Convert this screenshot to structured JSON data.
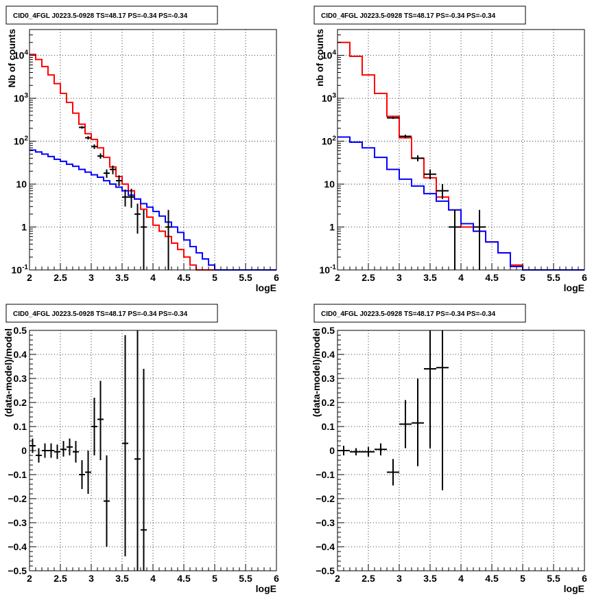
{
  "chart_data": [
    {
      "type": "step-histogram-with-errorbars",
      "title": "CID0_4FGL J0223.5-0928 TS=48.17 PS=-0.34 PS=-0.34",
      "xlabel": "logE",
      "ylabel": "Nb of counts",
      "xlim": [
        2,
        6
      ],
      "ylim": [
        0.1,
        40000
      ],
      "ylog": true,
      "grid": true,
      "xticks": [
        "2",
        "2.5",
        "3",
        "3.5",
        "4",
        "4.5",
        "5",
        "5.5",
        "6"
      ],
      "yticks": [
        {
          "v": 0.1,
          "label": "10",
          "exp": "-1"
        },
        {
          "v": 1,
          "label": "1",
          "exp": ""
        },
        {
          "v": 10,
          "label": "10",
          "exp": ""
        },
        {
          "v": 100,
          "label": "10",
          "exp": "2"
        },
        {
          "v": 1000,
          "label": "10",
          "exp": "3"
        },
        {
          "v": 10000,
          "label": "10",
          "exp": "4"
        }
      ],
      "bin_edges": [
        2.0,
        2.1,
        2.2,
        2.3,
        2.4,
        2.5,
        2.6,
        2.7,
        2.8,
        2.9,
        3.0,
        3.1,
        3.2,
        3.3,
        3.4,
        3.5,
        3.6,
        3.7,
        3.8,
        3.9,
        4.0,
        4.1,
        4.2,
        4.3,
        4.4,
        4.5,
        4.6,
        4.7,
        4.8,
        4.9,
        5.0,
        5.1,
        5.2,
        5.3,
        5.4,
        5.5,
        5.6,
        5.7,
        5.8,
        5.9,
        6.0
      ],
      "series": [
        {
          "color": "#ff0000",
          "values": [
            10500,
            8000,
            5500,
            3500,
            2200,
            1300,
            800,
            450,
            250,
            150,
            110,
            70,
            42,
            25,
            15,
            10,
            7,
            4.5,
            2.6,
            1.7,
            1.1,
            0.8,
            0.6,
            0.42,
            0.3,
            0.2,
            0.13,
            0.1,
            0.1,
            0.1,
            0.1,
            0.1,
            0.1,
            0.1,
            0.1,
            0.1,
            0.1,
            0.1,
            0.1,
            0.1
          ]
        },
        {
          "color": "#0000ff",
          "values": [
            62,
            56,
            50,
            44,
            38,
            34,
            29,
            26,
            22,
            19,
            16.5,
            14.5,
            12,
            10,
            8.5,
            7,
            5.5,
            4.5,
            3.5,
            2.9,
            2.3,
            1.8,
            1.3,
            1.0,
            0.75,
            0.5,
            0.35,
            0.25,
            0.18,
            0.13,
            0.1,
            0.1,
            0.1,
            0.1,
            0.1,
            0.1,
            0.1,
            0.1,
            0.1,
            0.1
          ]
        }
      ],
      "points": [
        {
          "x": 2.85,
          "y": 210,
          "hw": 0.05,
          "lo": 195,
          "hi": 225
        },
        {
          "x": 2.95,
          "y": 120,
          "hw": 0.05,
          "lo": 109,
          "hi": 131
        },
        {
          "x": 3.05,
          "y": 75,
          "hw": 0.05,
          "lo": 66,
          "hi": 84
        },
        {
          "x": 3.15,
          "y": 45,
          "hw": 0.05,
          "lo": 39,
          "hi": 52
        },
        {
          "x": 3.25,
          "y": 18,
          "hw": 0.05,
          "lo": 14,
          "hi": 22
        },
        {
          "x": 3.35,
          "y": 22,
          "hw": 0.05,
          "lo": 17,
          "hi": 27
        },
        {
          "x": 3.45,
          "y": 12,
          "hw": 0.05,
          "lo": 9,
          "hi": 16
        },
        {
          "x": 3.55,
          "y": 5,
          "hw": 0.05,
          "lo": 3,
          "hi": 7.5
        },
        {
          "x": 3.65,
          "y": 5,
          "hw": 0.05,
          "lo": 2.8,
          "hi": 7.8
        },
        {
          "x": 3.75,
          "y": 2,
          "hw": 0.05,
          "lo": 0.7,
          "hi": 3.5
        },
        {
          "x": 3.85,
          "y": 1,
          "hw": 0.05,
          "lo": 0.1,
          "hi": 2.5
        },
        {
          "x": 4.25,
          "y": 1,
          "hw": 0.05,
          "lo": 0.1,
          "hi": 2.5
        }
      ]
    },
    {
      "type": "step-histogram-with-errorbars",
      "title": "CID0_4FGL J0223.5-0928 TS=48.17 PS=-0.34 PS=-0.34",
      "xlabel": "logE",
      "ylabel": "nb of counts",
      "xlim": [
        2,
        6
      ],
      "ylim": [
        0.1,
        40000
      ],
      "ylog": true,
      "grid": true,
      "xticks": [
        "2",
        "2.5",
        "3",
        "3.5",
        "4",
        "4.5",
        "5",
        "5.5",
        "6"
      ],
      "yticks": [
        {
          "v": 0.1,
          "label": "10",
          "exp": "-1"
        },
        {
          "v": 1,
          "label": "1",
          "exp": ""
        },
        {
          "v": 10,
          "label": "10",
          "exp": ""
        },
        {
          "v": 100,
          "label": "10",
          "exp": "2"
        },
        {
          "v": 1000,
          "label": "10",
          "exp": "3"
        },
        {
          "v": 10000,
          "label": "10",
          "exp": "4"
        }
      ],
      "bin_edges": [
        2.0,
        2.2,
        2.4,
        2.6,
        2.8,
        3.0,
        3.2,
        3.4,
        3.6,
        3.8,
        4.0,
        4.2,
        4.4,
        4.6,
        4.8,
        5.0,
        5.2,
        5.4,
        5.6,
        5.8,
        6.0
      ],
      "series": [
        {
          "color": "#ff0000",
          "values": [
            20000,
            9500,
            3500,
            1300,
            380,
            120,
            40,
            14,
            5,
            2.5,
            1.0,
            0.8,
            0.45,
            0.25,
            0.13,
            0.1,
            0.1,
            0.1,
            0.1,
            0.1
          ]
        },
        {
          "color": "#0000ff",
          "values": [
            125,
            95,
            70,
            42,
            22,
            13,
            9,
            6,
            4,
            2.5,
            1.2,
            0.8,
            0.45,
            0.25,
            0.12,
            0.1,
            0.1,
            0.1,
            0.1,
            0.1
          ]
        }
      ],
      "points": [
        {
          "x": 2.9,
          "y": 350,
          "hw": 0.1,
          "lo": 330,
          "hi": 370
        },
        {
          "x": 3.1,
          "y": 130,
          "hw": 0.1,
          "lo": 118,
          "hi": 142
        },
        {
          "x": 3.3,
          "y": 40,
          "hw": 0.1,
          "lo": 34,
          "hi": 47
        },
        {
          "x": 3.5,
          "y": 17,
          "hw": 0.1,
          "lo": 13,
          "hi": 22
        },
        {
          "x": 3.7,
          "y": 7,
          "hw": 0.1,
          "lo": 4.5,
          "hi": 10
        },
        {
          "x": 3.9,
          "y": 1,
          "hw": 0.1,
          "lo": 0.1,
          "hi": 2.5
        },
        {
          "x": 4.3,
          "y": 1,
          "hw": 0.1,
          "lo": 0.1,
          "hi": 2.5
        }
      ]
    },
    {
      "type": "errorbar",
      "title": "CID0_4FGL J0223.5-0928 TS=48.17 PS=-0.34 PS=-0.34",
      "xlabel": "logE",
      "ylabel": "(data-model)/model",
      "xlim": [
        2,
        6
      ],
      "ylim": [
        -0.5,
        0.5
      ],
      "ylog": false,
      "grid": true,
      "xticks": [
        "2",
        "2.5",
        "3",
        "3.5",
        "4",
        "4.5",
        "5",
        "5.5",
        "6"
      ],
      "yticks": [
        {
          "v": -0.5,
          "label": "−0.5"
        },
        {
          "v": -0.4,
          "label": "−0.4"
        },
        {
          "v": -0.3,
          "label": "−0.3"
        },
        {
          "v": -0.2,
          "label": "−0.2"
        },
        {
          "v": -0.1,
          "label": "−0.1"
        },
        {
          "v": 0,
          "label": "0"
        },
        {
          "v": 0.1,
          "label": "0.1"
        },
        {
          "v": 0.2,
          "label": "0.2"
        },
        {
          "v": 0.3,
          "label": "0.3"
        },
        {
          "v": 0.4,
          "label": "0.4"
        },
        {
          "v": 0.5,
          "label": "0.5"
        }
      ],
      "points": [
        {
          "x": 2.05,
          "y": 0.02,
          "hw": 0.05,
          "lo": -0.01,
          "hi": 0.05
        },
        {
          "x": 2.15,
          "y": -0.02,
          "hw": 0.05,
          "lo": -0.05,
          "hi": 0.01
        },
        {
          "x": 2.25,
          "y": 0.0,
          "hw": 0.05,
          "lo": -0.03,
          "hi": 0.03
        },
        {
          "x": 2.35,
          "y": 0.0,
          "hw": 0.05,
          "lo": -0.03,
          "hi": 0.03
        },
        {
          "x": 2.45,
          "y": -0.005,
          "hw": 0.05,
          "lo": -0.035,
          "hi": 0.025
        },
        {
          "x": 2.55,
          "y": 0.005,
          "hw": 0.05,
          "lo": -0.025,
          "hi": 0.04
        },
        {
          "x": 2.65,
          "y": 0.015,
          "hw": 0.05,
          "lo": -0.02,
          "hi": 0.05
        },
        {
          "x": 2.75,
          "y": -0.005,
          "hw": 0.05,
          "lo": -0.05,
          "hi": 0.04
        },
        {
          "x": 2.85,
          "y": -0.1,
          "hw": 0.05,
          "lo": -0.16,
          "hi": -0.04
        },
        {
          "x": 2.95,
          "y": -0.09,
          "hw": 0.05,
          "lo": -0.18,
          "hi": 0.0
        },
        {
          "x": 3.05,
          "y": 0.1,
          "hw": 0.05,
          "lo": -0.02,
          "hi": 0.22
        },
        {
          "x": 3.15,
          "y": 0.13,
          "hw": 0.05,
          "lo": -0.04,
          "hi": 0.29
        },
        {
          "x": 3.25,
          "y": -0.21,
          "hw": 0.05,
          "lo": -0.4,
          "hi": -0.02
        },
        {
          "x": 3.55,
          "y": 0.03,
          "hw": 0.05,
          "lo": -0.44,
          "hi": 0.48
        },
        {
          "x": 3.75,
          "y": -0.035,
          "hw": 0.05,
          "lo": -0.55,
          "hi": 0.55
        },
        {
          "x": 3.85,
          "y": -0.33,
          "hw": 0.05,
          "lo": -0.55,
          "hi": 0.34
        }
      ]
    },
    {
      "type": "errorbar",
      "title": "CID0_4FGL J0223.5-0928 TS=48.17 PS=-0.34 PS=-0.34",
      "xlabel": "logE",
      "ylabel": "(data-model)/model",
      "xlim": [
        2,
        6
      ],
      "ylim": [
        -0.5,
        0.5
      ],
      "ylog": false,
      "grid": true,
      "xticks": [
        "2",
        "2.5",
        "3",
        "3.5",
        "4",
        "4.5",
        "5",
        "5.5",
        "6"
      ],
      "yticks": [
        {
          "v": -0.5,
          "label": "−0.5"
        },
        {
          "v": -0.4,
          "label": "−0.4"
        },
        {
          "v": -0.3,
          "label": "−0.3"
        },
        {
          "v": -0.2,
          "label": "−0.2"
        },
        {
          "v": -0.1,
          "label": "−0.1"
        },
        {
          "v": 0,
          "label": "0"
        },
        {
          "v": 0.1,
          "label": "0.1"
        },
        {
          "v": 0.2,
          "label": "0.2"
        },
        {
          "v": 0.3,
          "label": "0.3"
        },
        {
          "v": 0.4,
          "label": "0.4"
        },
        {
          "v": 0.5,
          "label": "0.5"
        }
      ],
      "points": [
        {
          "x": 2.1,
          "y": 0.0,
          "hw": 0.1,
          "lo": -0.02,
          "hi": 0.02
        },
        {
          "x": 2.3,
          "y": -0.005,
          "hw": 0.1,
          "lo": -0.02,
          "hi": 0.01
        },
        {
          "x": 2.5,
          "y": -0.005,
          "hw": 0.1,
          "lo": -0.025,
          "hi": 0.015
        },
        {
          "x": 2.7,
          "y": 0.005,
          "hw": 0.1,
          "lo": -0.02,
          "hi": 0.03
        },
        {
          "x": 2.9,
          "y": -0.09,
          "hw": 0.1,
          "lo": -0.145,
          "hi": -0.035
        },
        {
          "x": 3.1,
          "y": 0.11,
          "hw": 0.1,
          "lo": 0.01,
          "hi": 0.21
        },
        {
          "x": 3.3,
          "y": 0.115,
          "hw": 0.1,
          "lo": -0.065,
          "hi": 0.3
        },
        {
          "x": 3.5,
          "y": 0.34,
          "hw": 0.1,
          "lo": 0.01,
          "hi": 0.55
        },
        {
          "x": 3.7,
          "y": 0.345,
          "hw": 0.1,
          "lo": -0.165,
          "hi": 0.55
        }
      ]
    }
  ]
}
